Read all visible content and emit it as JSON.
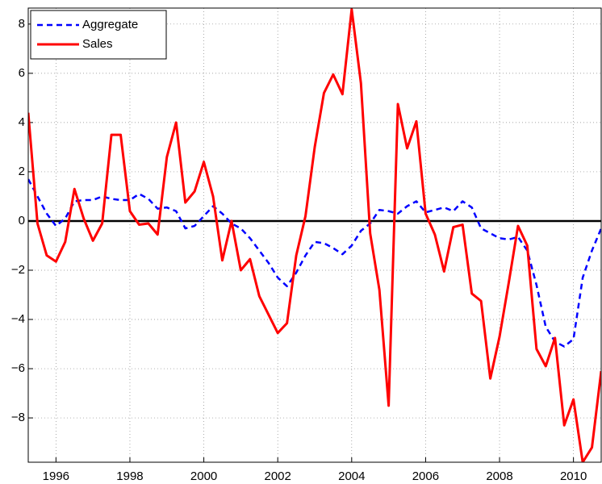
{
  "chart_data": {
    "type": "line",
    "x": [
      1995.25,
      1995.5,
      1995.75,
      1996,
      1996.25,
      1996.5,
      1996.75,
      1997,
      1997.25,
      1997.5,
      1997.75,
      1998,
      1998.25,
      1998.5,
      1998.75,
      1999,
      1999.25,
      1999.5,
      1999.75,
      2000,
      2000.25,
      2000.5,
      2000.75,
      2001,
      2001.25,
      2001.5,
      2001.75,
      2002,
      2002.25,
      2002.5,
      2002.75,
      2003,
      2003.25,
      2003.5,
      2003.75,
      2004,
      2004.25,
      2004.5,
      2004.75,
      2005,
      2005.25,
      2005.5,
      2005.75,
      2006,
      2006.25,
      2006.5,
      2006.75,
      2007,
      2007.25,
      2007.5,
      2007.75,
      2008,
      2008.25,
      2008.5,
      2008.75,
      2009,
      2009.25,
      2009.5,
      2009.75,
      2010,
      2010.25,
      2010.5,
      2010.75
    ],
    "series": [
      {
        "name": "Aggregate",
        "color": "#0000ff",
        "dash": true,
        "values": [
          1.7,
          1.0,
          0.3,
          -0.2,
          0.1,
          0.8,
          0.85,
          0.85,
          1.0,
          0.9,
          0.85,
          0.85,
          1.1,
          0.9,
          0.5,
          0.55,
          0.4,
          -0.3,
          -0.2,
          0.2,
          0.6,
          0.3,
          -0.1,
          -0.3,
          -0.7,
          -1.2,
          -1.7,
          -2.3,
          -2.65,
          -2.1,
          -1.4,
          -0.85,
          -0.9,
          -1.1,
          -1.35,
          -1.0,
          -0.4,
          -0.1,
          0.45,
          0.4,
          0.3,
          0.6,
          0.8,
          0.35,
          0.45,
          0.55,
          0.4,
          0.8,
          0.55,
          -0.3,
          -0.5,
          -0.7,
          -0.75,
          -0.65,
          -1.2,
          -2.6,
          -4.3,
          -4.9,
          -5.1,
          -4.8,
          -2.3,
          -1.2,
          -0.3
        ]
      },
      {
        "name": "Sales",
        "color": "#ff0000",
        "dash": false,
        "values": [
          4.4,
          -0.1,
          -1.4,
          -1.65,
          -0.85,
          1.3,
          0.1,
          -0.8,
          -0.1,
          3.5,
          3.5,
          0.4,
          -0.15,
          -0.1,
          -0.55,
          2.6,
          4.0,
          0.75,
          1.2,
          2.4,
          1.0,
          -1.6,
          0.0,
          -2.0,
          -1.55,
          -3.05,
          -3.8,
          -4.55,
          -4.15,
          -1.4,
          0.2,
          3.0,
          5.2,
          5.95,
          5.15,
          8.6,
          5.6,
          -0.5,
          -2.8,
          -7.5,
          4.75,
          2.95,
          4.05,
          0.3,
          -0.55,
          -2.05,
          -0.25,
          -0.15,
          -2.95,
          -3.25,
          -6.4,
          -4.7,
          -2.5,
          -0.2,
          -1.0,
          -5.2,
          -5.9,
          -4.75,
          -8.3,
          -7.25,
          -9.8,
          -9.2,
          -6.1
        ]
      }
    ],
    "xlim": [
      1995.25,
      2010.75
    ],
    "xticks": [
      1996,
      1998,
      2000,
      2002,
      2004,
      2006,
      2008,
      2010
    ],
    "ylim": [
      -9.8,
      8.65
    ],
    "yticks": [
      {
        "value": -8,
        "label": "−8"
      },
      {
        "value": -6,
        "label": "−6"
      },
      {
        "value": -4,
        "label": "−4"
      },
      {
        "value": -2,
        "label": "−2"
      },
      0,
      2,
      4,
      6,
      8
    ],
    "reference_line": 0,
    "grid": true,
    "legend": "upper-left"
  }
}
